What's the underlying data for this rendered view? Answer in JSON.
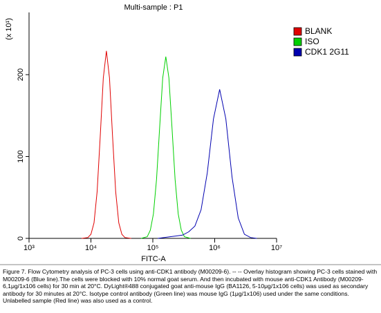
{
  "chart_data": {
    "type": "line",
    "title": "Multi-sample : P1",
    "y_unit_label": "(x 10¹)",
    "x_label": "FITC-A",
    "x_log": true,
    "xlim": [
      1000,
      10000000
    ],
    "xticks": [
      {
        "value": 1000,
        "label": "10³"
      },
      {
        "value": 10000,
        "label": "10⁴"
      },
      {
        "value": 100000,
        "label": "10⁵"
      },
      {
        "value": 1000000,
        "label": "10⁶"
      },
      {
        "value": 10000000,
        "label": "10⁷"
      }
    ],
    "ylim": [
      0,
      276
    ],
    "yticks": [
      0,
      100,
      200
    ],
    "legend": "right",
    "series": [
      {
        "name": "BLANK",
        "color": "#e00000",
        "x": [
          7079,
          8913,
          10000,
          11220,
          12589,
          14125,
          15849,
          17783,
          19953,
          22387,
          25119,
          28184,
          31623,
          35481,
          44668
        ],
        "values": [
          0,
          1,
          5,
          19,
          57,
          124,
          196,
          229,
          196,
          124,
          57,
          19,
          5,
          1,
          0
        ]
      },
      {
        "name": "ISO",
        "color": "#00d000",
        "x": [
          64565,
          81283,
          91201,
          102329,
          114815,
          128825,
          144544,
          162181,
          181970,
          204174,
          229087,
          257040,
          288403,
          323594,
          407380
        ],
        "values": [
          0,
          2,
          10,
          30,
          72,
          135,
          196,
          222,
          196,
          135,
          72,
          30,
          10,
          2,
          0
        ]
      },
      {
        "name": "CDK1 2G11",
        "color": "#0000b0",
        "x": [
          120226,
          190546,
          301995,
          380189,
          478630,
          602560,
          758578,
          954993,
          1202264,
          1513561,
          1905461,
          2398833,
          3019952,
          3801894,
          4786301
        ],
        "values": [
          0,
          2,
          4,
          8,
          15,
          35,
          80,
          146,
          182,
          146,
          75,
          25,
          5,
          1,
          0
        ]
      }
    ],
    "caption": "Figure 7. Flow Cytometry analysis of PC-3 cells using anti-CDK1 antibody (M00209-6). -- -- Overlay histogram showing PC-3 cells stained with M00209-6 (Blue line).The cells were blocked with 10% normal goat serum. And then incubated with mouse anti-CDK1 Antibody (M00209-6,1μg/1x106 cells) for 30 min at 20°C. DyLight®488 conjugated goat anti-mouse IgG (BA1126, 5-10μg/1x106 cells) was used as secondary antibody for 30 minutes at 20°C. Isotype control antibody (Green line) was mouse IgG (1μg/1x106) used under the same conditions. Unlabelled sample (Red line) was also used as a control."
  }
}
